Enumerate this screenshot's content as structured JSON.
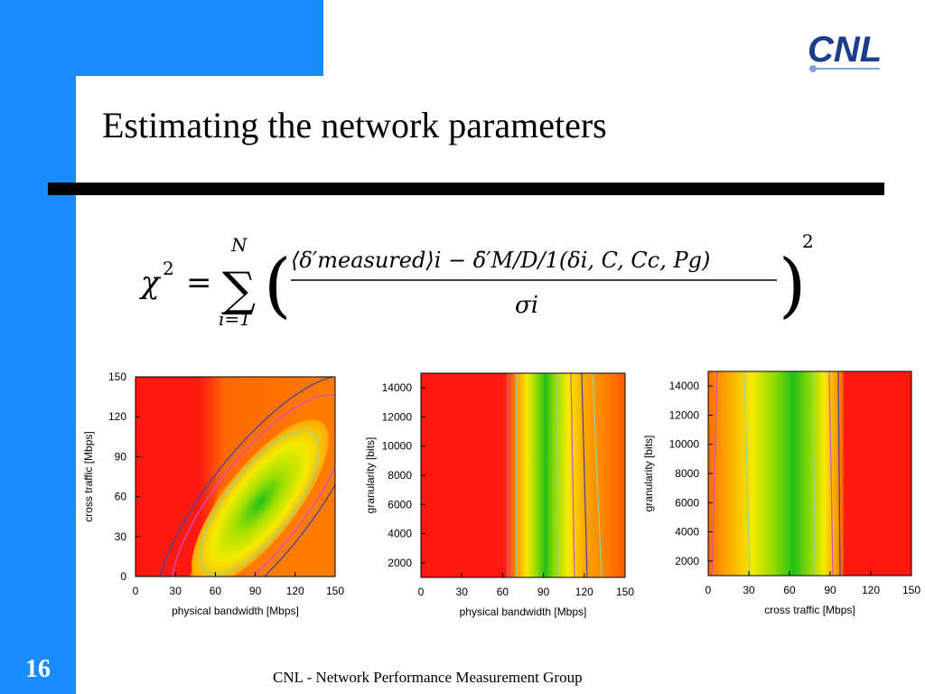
{
  "slide": {
    "title": "Estimating the network parameters",
    "page_number": "16",
    "footer": "CNL - Network Performance Measurement Group",
    "logo_text": "CNL",
    "formula": {
      "lhs": "χ",
      "exp": "2",
      "eq": "=",
      "sum_upper": "N",
      "sum_lower": "i=1",
      "numerator": "⟨δ′measured⟩i − δ̄′M/D/1(δi, C, Cc, Pg)",
      "denominator": "σi",
      "outer_exp": "2"
    }
  },
  "colors": {
    "accent": "#1a8cff",
    "heat_low": "#2ec81e",
    "heat_mid": "#f0ea00",
    "heat_high": "#ff6a00",
    "heat_max": "#ff1a10"
  },
  "chart_data": [
    {
      "type": "heatmap",
      "xlabel": "physical bandwidth [Mbps]",
      "ylabel": "cross traffic [Mbps]",
      "xlim": [
        0,
        150
      ],
      "ylim": [
        0,
        150
      ],
      "xticks": [
        "0",
        "30",
        "60",
        "90",
        "120",
        "150"
      ],
      "yticks": [
        "0",
        "30",
        "60",
        "90",
        "120",
        "150"
      ],
      "minimum": {
        "x": 90,
        "y": 55
      }
    },
    {
      "type": "heatmap",
      "xlabel": "physical bandwidth [Mbps]",
      "ylabel": "granularity [bits]",
      "xlim": [
        0,
        150
      ],
      "ylim": [
        1000,
        15000
      ],
      "xticks": [
        "0",
        "30",
        "60",
        "90",
        "120",
        "150"
      ],
      "yticks": [
        "2000",
        "4000",
        "6000",
        "8000",
        "10000",
        "12000",
        "14000"
      ],
      "minimum": {
        "x": 90
      }
    },
    {
      "type": "heatmap",
      "xlabel": "cross traffic [Mbps]",
      "ylabel": "granularity [bits]",
      "xlim": [
        0,
        150
      ],
      "ylim": [
        1000,
        15000
      ],
      "xticks": [
        "0",
        "30",
        "60",
        "90",
        "120",
        "150"
      ],
      "yticks": [
        "2000",
        "4000",
        "6000",
        "8000",
        "10000",
        "12000",
        "14000"
      ],
      "minimum": {
        "x": 60
      }
    }
  ]
}
